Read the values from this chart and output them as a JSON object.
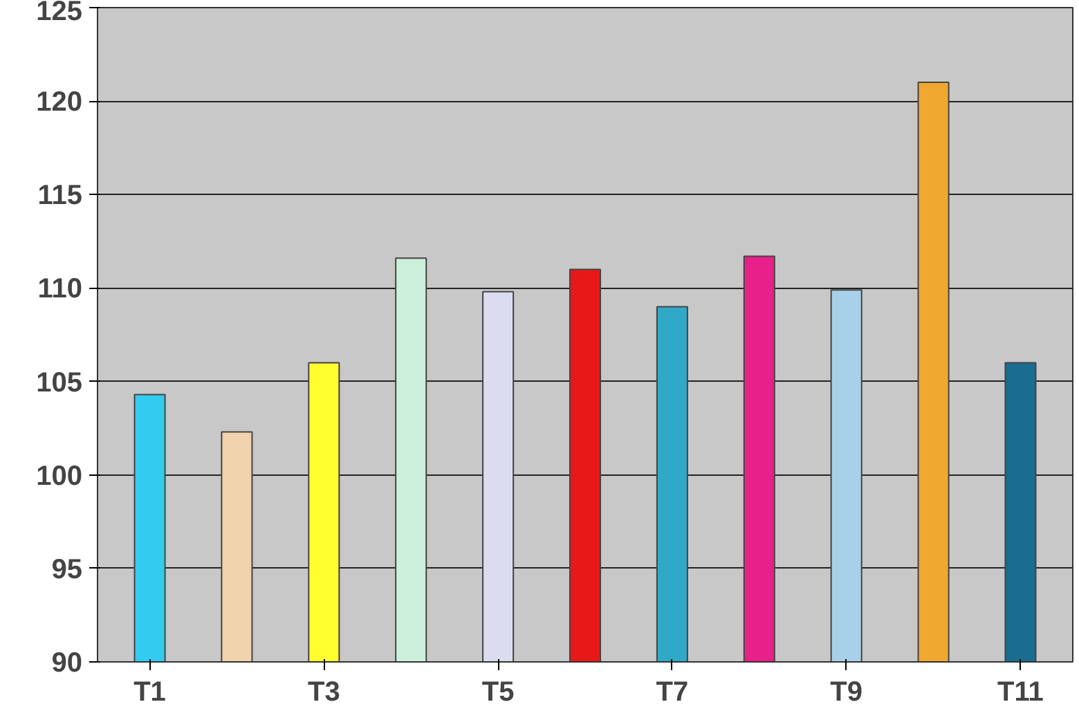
{
  "chart_data": {
    "type": "bar",
    "categories": [
      "T1",
      null,
      "T3",
      null,
      "T5",
      null,
      "T7",
      null,
      "T9",
      null,
      "T11"
    ],
    "values": [
      104.3,
      102.3,
      106,
      111.6,
      109.8,
      111,
      109,
      111.7,
      109.9,
      121,
      106
    ],
    "colors": [
      "#33ccf0",
      "#f0d2ac",
      "#ffff30",
      "#cdf0dc",
      "#dcdcf0",
      "#e81818",
      "#30a8c8",
      "#e8208a",
      "#a8d0e8",
      "#f0a830",
      "#1a6c90"
    ],
    "ylim": [
      90,
      125
    ],
    "yticks": [
      90,
      95,
      100,
      105,
      110,
      115,
      120,
      125
    ],
    "grid": "y"
  }
}
